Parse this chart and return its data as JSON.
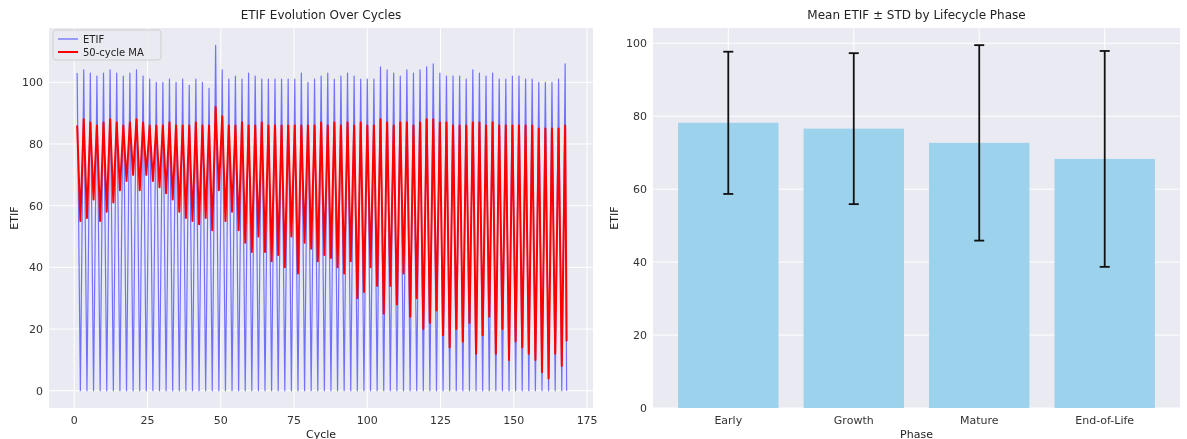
{
  "chart_data": [
    {
      "type": "line",
      "title": "ETIF Evolution Over Cycles",
      "xlabel": "Cycle",
      "ylabel": "ETIF",
      "xlim": [
        -8.6,
        177
      ],
      "ylim": [
        -5.6,
        117.6
      ],
      "xticks": [
        0,
        25,
        50,
        75,
        100,
        125,
        150,
        175
      ],
      "yticks": [
        0,
        20,
        40,
        60,
        80,
        100
      ],
      "grid": true,
      "legend": "top left",
      "x": [
        1,
        2.1,
        3.25,
        4.35,
        5.5,
        6.6,
        7.75,
        8.85,
        10,
        11.1,
        12.25,
        13.35,
        14.5,
        15.6,
        16.75,
        17.85,
        19,
        20.1,
        21.25,
        22.35,
        23.5,
        24.6,
        25.75,
        26.85,
        28,
        29.1,
        30.25,
        31.35,
        32.5,
        33.6,
        34.75,
        35.85,
        37,
        38.1,
        39.25,
        40.35,
        41.5,
        42.6,
        43.75,
        44.85,
        46,
        47.1,
        48.25,
        49.35,
        50.5,
        51.6,
        52.75,
        53.85,
        55,
        56.1,
        57.25,
        58.35,
        59.5,
        60.6,
        61.75,
        62.85,
        64,
        65.1,
        66.25,
        67.35,
        68.5,
        69.6,
        70.75,
        71.85,
        73,
        74.1,
        75.25,
        76.35,
        77.5,
        78.6,
        79.75,
        80.85,
        82,
        83.1,
        84.25,
        85.35,
        86.5,
        87.6,
        88.75,
        89.85,
        91,
        92.1,
        93.25,
        94.35,
        95.5,
        96.6,
        97.75,
        98.85,
        100,
        101.1,
        102.25,
        103.35,
        104.5,
        105.6,
        106.75,
        107.85,
        109,
        110.1,
        111.25,
        112.35,
        113.5,
        114.6,
        115.75,
        116.85,
        118,
        119.1,
        120.25,
        121.35,
        122.5,
        123.6,
        124.75,
        125.85,
        127,
        128.1,
        129.25,
        130.35,
        131.5,
        132.6,
        133.75,
        134.85,
        136,
        137.1,
        138.25,
        139.35,
        140.5,
        141.6,
        142.75,
        143.85,
        145,
        146.1,
        147.25,
        148.35,
        149.5,
        150.6,
        151.75,
        152.85,
        154,
        155.1,
        156.25,
        157.35,
        158.5,
        159.6,
        160.75,
        161.85,
        163,
        164.1,
        165.25,
        166.35,
        167.5,
        168
      ],
      "series": [
        {
          "name": "ETIF",
          "color": "#6464ff",
          "values": [
            103,
            0,
            104,
            0,
            103,
            0,
            102,
            0,
            103,
            0,
            104,
            0,
            103,
            0,
            102,
            0,
            103,
            0,
            104,
            0,
            102,
            0,
            101,
            0,
            100,
            0,
            100,
            0,
            101,
            0,
            100,
            0,
            101,
            0,
            99,
            0,
            101,
            0,
            100,
            0,
            98,
            0,
            112,
            0,
            104,
            0,
            101,
            0,
            102,
            0,
            101,
            0,
            103,
            0,
            102,
            0,
            101,
            0,
            101,
            0,
            101,
            0,
            101,
            0,
            101,
            0,
            101,
            0,
            103,
            0,
            100,
            0,
            101,
            0,
            102,
            0,
            103,
            0,
            101,
            0,
            102,
            0,
            103,
            0,
            102,
            0,
            101,
            0,
            101,
            0,
            101,
            0,
            105,
            0,
            104,
            0,
            103,
            0,
            102,
            0,
            104,
            0,
            103,
            0,
            104,
            0,
            105,
            0,
            106,
            0,
            103,
            0,
            102,
            0,
            102,
            0,
            102,
            0,
            101,
            0,
            104,
            0,
            103,
            0,
            102,
            0,
            103,
            0,
            101,
            0,
            101,
            0,
            102,
            0,
            102,
            0,
            101,
            0,
            101,
            0,
            100,
            0,
            100,
            0,
            100,
            0,
            101,
            0,
            106,
            0
          ]
        },
        {
          "name": "50-cycle MA",
          "color": "#ff0000",
          "values": [
            86,
            55,
            88,
            56,
            87,
            62,
            86,
            55,
            87,
            58,
            88,
            61,
            87,
            65,
            86,
            68,
            87,
            70,
            88,
            65,
            87,
            70,
            86,
            68,
            86,
            66,
            86,
            64,
            87,
            62,
            86,
            58,
            86,
            56,
            86,
            55,
            87,
            54,
            86,
            56,
            86,
            52,
            92,
            65,
            89,
            55,
            86,
            58,
            86,
            52,
            87,
            48,
            86,
            45,
            86,
            50,
            87,
            45,
            86,
            42,
            86,
            44,
            86,
            40,
            86,
            50,
            86,
            38,
            86,
            48,
            86,
            46,
            86,
            42,
            87,
            44,
            86,
            43,
            87,
            40,
            86,
            38,
            87,
            42,
            86,
            30,
            87,
            32,
            86,
            40,
            86,
            34,
            88,
            25,
            87,
            34,
            86,
            28,
            87,
            38,
            87,
            24,
            86,
            30,
            87,
            20,
            88,
            22,
            88,
            26,
            87,
            18,
            87,
            14,
            86,
            20,
            86,
            16,
            86,
            22,
            87,
            12,
            87,
            18,
            86,
            24,
            87,
            12,
            86,
            20,
            86,
            10,
            86,
            16,
            86,
            14,
            86,
            12,
            86,
            10,
            85,
            6,
            85,
            4,
            85,
            12,
            85,
            8,
            86,
            16
          ]
        }
      ]
    },
    {
      "type": "bar",
      "title": "Mean ETIF ± STD by Lifecycle Phase",
      "xlabel": "Phase",
      "ylabel": "ETIF",
      "categories": [
        "Early",
        "Growth",
        "Mature",
        "End-of-Life"
      ],
      "values": [
        78.2,
        76.6,
        72.7,
        68.3
      ],
      "errors": [
        19.5,
        20.7,
        26.8,
        29.6
      ],
      "color": "#9cd2eb",
      "ylim": [
        0,
        104.2
      ],
      "yticks": [
        0,
        20,
        40,
        60,
        80,
        100
      ],
      "grid": true
    }
  ]
}
